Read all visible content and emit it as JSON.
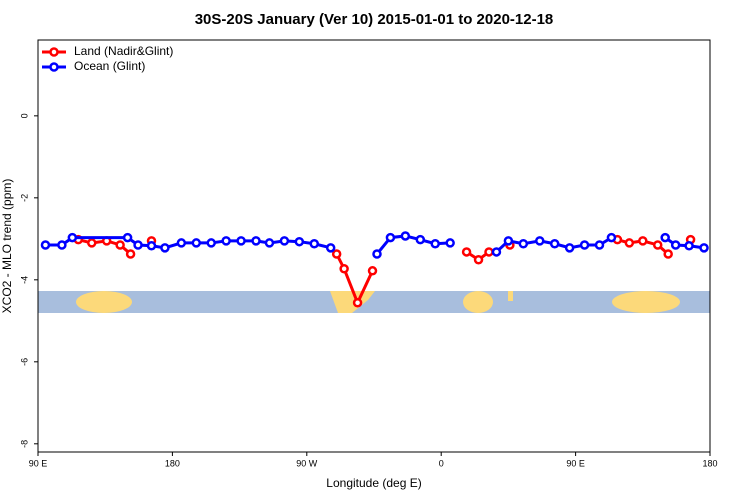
{
  "chart_data": {
    "type": "line",
    "title": "30S-20S January (Ver 10)   2015-01-01 to 2020-12-18",
    "xlabel": "Longitude (deg E)",
    "ylabel": "XCO2 - MLO trend (ppm)",
    "xlim": [
      90,
      540
    ],
    "ylim": [
      -8.2,
      1.85
    ],
    "xticks": [
      {
        "value": 90,
        "label": "90 E"
      },
      {
        "value": 180,
        "label": "180"
      },
      {
        "value": 270,
        "label": "90 W"
      },
      {
        "value": 360,
        "label": "0"
      },
      {
        "value": 450,
        "label": "90 E"
      },
      {
        "value": 540,
        "label": "180"
      }
    ],
    "yticks": [
      -8,
      -6,
      -4,
      -2,
      0
    ],
    "legend": "top-left",
    "series": [
      {
        "name": "Land (Nadir&Glint)",
        "color": "#ff0000",
        "x": [
          117,
          126,
          136,
          145,
          152,
          null,
          166,
          null,
          290,
          295,
          304,
          314,
          null,
          377,
          385,
          392,
          null,
          406,
          null,
          478,
          486,
          495,
          505,
          512,
          null,
          527
        ],
        "values": [
          -3.02,
          -3.1,
          -3.05,
          -3.15,
          -3.37,
          null,
          -3.05,
          null,
          -3.37,
          -3.73,
          -4.56,
          -3.78,
          null,
          -3.32,
          -3.51,
          -3.32,
          null,
          -3.15,
          null,
          -3.02,
          -3.1,
          -3.05,
          -3.15,
          -3.37,
          null,
          -3.02
        ]
      },
      {
        "name": "Ocean (Glint)",
        "color": "#0000ff",
        "x": [
          95,
          106,
          113,
          150,
          157,
          166,
          175,
          186,
          196,
          206,
          216,
          226,
          236,
          245,
          255,
          265,
          275,
          286,
          null,
          317,
          326,
          336,
          346,
          356,
          366,
          null,
          397,
          405,
          415,
          426,
          436,
          446,
          456,
          466,
          474,
          null,
          510,
          517,
          526,
          536
        ],
        "values": [
          -3.15,
          -3.15,
          -2.97,
          -2.97,
          -3.15,
          -3.17,
          -3.22,
          -3.1,
          -3.1,
          -3.1,
          -3.05,
          -3.05,
          -3.05,
          -3.1,
          -3.05,
          -3.07,
          -3.12,
          -3.22,
          null,
          -3.37,
          -2.97,
          -2.93,
          -3.02,
          -3.12,
          -3.1,
          null,
          -3.32,
          -3.05,
          -3.12,
          -3.05,
          -3.12,
          -3.22,
          -3.15,
          -3.15,
          -2.97,
          null,
          -2.97,
          -3.15,
          -3.17,
          -3.22
        ]
      }
    ]
  }
}
